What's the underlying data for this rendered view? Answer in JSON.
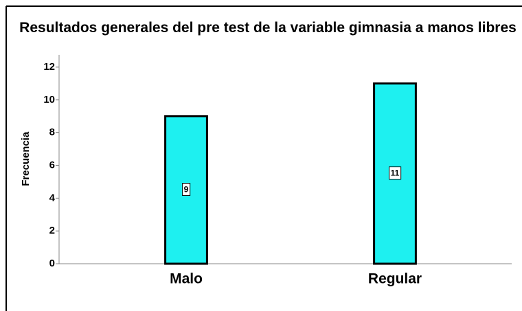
{
  "chart_data": {
    "type": "bar",
    "title": "Resultados generales del pre test de la variable gimnasia a manos libres",
    "y_label": "Frecuencia",
    "categories": [
      "Malo",
      "Regular"
    ],
    "values": [
      9,
      11
    ],
    "color": "#1ef0f0",
    "ylim": [
      0,
      12.75
    ],
    "yticks": [
      0,
      2,
      4,
      6,
      8,
      10,
      12
    ],
    "grid": false
  }
}
